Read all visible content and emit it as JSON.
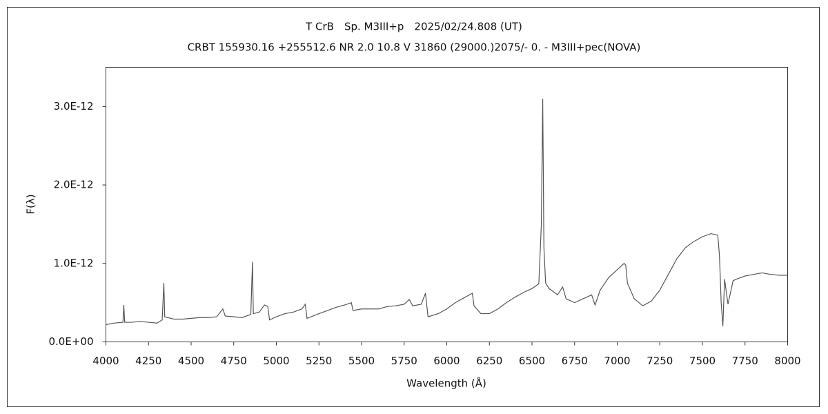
{
  "chart_data": {
    "type": "line",
    "title": "T CrB　Sp. M3III+p　2025/02/24.808 (UT)",
    "subtitle": "CRBT 155930.16 +255512.6 NR 2.0 10.8 V 31860 (29000.)2075/-  0. - M3III+pec(NOVA)",
    "x_label": "Wavelength (Å)",
    "y_label": "F(λ)",
    "xlim": [
      4000,
      8000
    ],
    "xticks": [
      4000,
      4250,
      4500,
      4750,
      5000,
      5250,
      5500,
      5750,
      6000,
      6250,
      6500,
      6750,
      7000,
      7250,
      7500,
      7750,
      8000
    ],
    "ylim": [
      0,
      3.5e-12
    ],
    "yticks": [
      {
        "value": 0,
        "label": "0.0E+00"
      },
      {
        "value": 1e-12,
        "label": "1.0E-12"
      },
      {
        "value": 2e-12,
        "label": "2.0E-12"
      },
      {
        "value": 3e-12,
        "label": "3.0E-12"
      }
    ],
    "grid": false,
    "x": [
      4000,
      4050,
      4100,
      4105,
      4110,
      4150,
      4200,
      4250,
      4300,
      4330,
      4340,
      4345,
      4400,
      4450,
      4500,
      4550,
      4600,
      4650,
      4686,
      4700,
      4750,
      4800,
      4850,
      4860,
      4865,
      4900,
      4930,
      4950,
      4960,
      5000,
      5050,
      5100,
      5150,
      5170,
      5180,
      5250,
      5300,
      5350,
      5400,
      5440,
      5450,
      5500,
      5550,
      5600,
      5650,
      5700,
      5750,
      5780,
      5800,
      5850,
      5875,
      5890,
      5950,
      6000,
      6050,
      6100,
      6150,
      6160,
      6200,
      6250,
      6300,
      6350,
      6400,
      6450,
      6500,
      6540,
      6555,
      6563,
      6570,
      6580,
      6600,
      6650,
      6680,
      6700,
      6750,
      6800,
      6850,
      6870,
      6900,
      6950,
      7000,
      7040,
      7050,
      7060,
      7100,
      7150,
      7200,
      7250,
      7300,
      7350,
      7400,
      7450,
      7500,
      7550,
      7590,
      7600,
      7610,
      7620,
      7630,
      7650,
      7680,
      7700,
      7750,
      7800,
      7850,
      7900,
      7950,
      8000
    ],
    "series": [
      {
        "name": "T CrB",
        "color": "#555555",
        "values": [
          2.2e-13,
          2.4e-13,
          2.5e-13,
          4.7e-13,
          2.5e-13,
          2.5e-13,
          2.6e-13,
          2.5e-13,
          2.4e-13,
          2.8e-13,
          7.5e-13,
          3.2e-13,
          2.9e-13,
          2.9e-13,
          3e-13,
          3.1e-13,
          3.1e-13,
          3.2e-13,
          4.2e-13,
          3.3e-13,
          3.2e-13,
          3.1e-13,
          3.5e-13,
          1.02e-12,
          3.6e-13,
          3.8e-13,
          4.7e-13,
          4.5e-13,
          2.8e-13,
          3.2e-13,
          3.6e-13,
          3.8e-13,
          4.2e-13,
          4.8e-13,
          3e-13,
          3.6e-13,
          4e-13,
          4.4e-13,
          4.7e-13,
          5e-13,
          4e-13,
          4.2e-13,
          4.2e-13,
          4.2e-13,
          4.5e-13,
          4.6e-13,
          4.8e-13,
          5.4e-13,
          4.6e-13,
          4.8e-13,
          6.2e-13,
          3.2e-13,
          3.6e-13,
          4.2e-13,
          5e-13,
          5.6e-13,
          6.2e-13,
          4.6e-13,
          3.6e-13,
          3.6e-13,
          4.2e-13,
          5e-13,
          5.7e-13,
          6.3e-13,
          6.8e-13,
          7.4e-13,
          1.5e-12,
          3.1e-12,
          1.2e-12,
          7.5e-13,
          6.8e-13,
          6e-13,
          7e-13,
          5.5e-13,
          5e-13,
          5.5e-13,
          6e-13,
          4.7e-13,
          6.6e-13,
          8.2e-13,
          9.2e-13,
          1e-12,
          9.8e-13,
          7.5e-13,
          5.5e-13,
          4.6e-13,
          5.2e-13,
          6.6e-13,
          8.6e-13,
          1.06e-12,
          1.2e-12,
          1.28e-12,
          1.34e-12,
          1.38e-12,
          1.36e-12,
          1.1e-12,
          5e-13,
          2e-13,
          8e-13,
          4.8e-13,
          7.8e-13,
          8e-13,
          8.4e-13,
          8.6e-13,
          8.8e-13,
          8.6e-13,
          8.5e-13,
          8.5e-13
        ]
      }
    ]
  }
}
